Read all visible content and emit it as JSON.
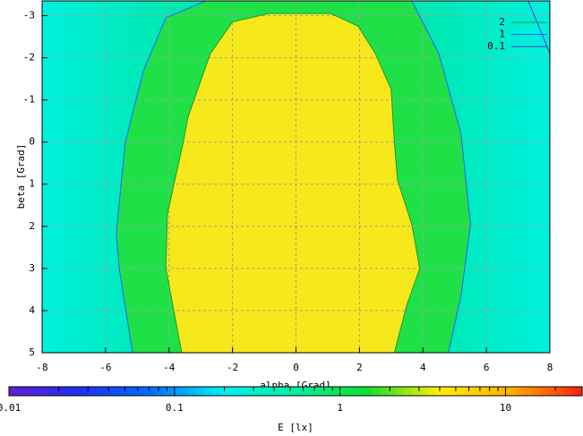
{
  "chart_data": {
    "type": "contour-map",
    "xlabel": "alpha [Grad]",
    "ylabel": "beta [Grad]",
    "xlim": [
      -8,
      8
    ],
    "xticks": [
      -8,
      -6,
      -4,
      -2,
      0,
      2,
      4,
      6,
      8
    ],
    "ylim": [
      5,
      -3.35
    ],
    "yticks": [
      -3,
      -2,
      -1,
      0,
      1,
      2,
      3,
      4,
      5
    ],
    "grid": true,
    "legend": "top-right",
    "background_colors": [
      "#00f0e0",
      "#00e8b0",
      "#00e8a8",
      "#00e8b0",
      "#00f0e0"
    ],
    "series": [
      {
        "name": "2",
        "color": "#1a9a2a",
        "fill": "#f6e81a",
        "x": [
          -3.6,
          -4.1,
          -4.05,
          -3.55,
          -3.4,
          -2.7,
          -2.0,
          -0.86,
          1.1,
          1.96,
          2.5,
          3.0,
          3.1,
          3.2,
          3.65,
          3.9,
          3.5,
          3.1
        ],
        "y": [
          5,
          3,
          1.7,
          0,
          -0.6,
          -2.1,
          -2.85,
          -3.05,
          -3.05,
          -2.75,
          -2.1,
          -1.25,
          0,
          0.9,
          1.95,
          3,
          3.85,
          5
        ]
      },
      {
        "name": "1",
        "color": "#2a60ff",
        "fill": "#20e048",
        "x": [
          -5.15,
          -5.57,
          -5.66,
          -5.38,
          -4.8,
          -4.1,
          -2.84,
          3.65,
          4.5,
          5.2,
          5.5,
          5.2,
          4.8
        ],
        "y": [
          5,
          3,
          2.15,
          0,
          -1.7,
          -2.95,
          -3.35,
          -3.35,
          -2.1,
          -0.2,
          1.95,
          3.65,
          5
        ]
      },
      {
        "name": "0.1",
        "color": "#5a30d0",
        "x": [
          7.32,
          8
        ],
        "y": [
          -3.35,
          -2.1
        ]
      }
    ],
    "colorbar": {
      "label": "E [lx]",
      "log": true,
      "clim": [
        0.01,
        29
      ],
      "ticks": [
        0.01,
        0.1,
        1,
        10
      ],
      "minor_ticks": [
        0.02,
        0.03,
        0.04,
        0.05,
        0.06,
        0.07,
        0.08,
        0.09,
        0.2,
        0.3,
        0.4,
        0.5,
        0.6,
        0.7,
        0.8,
        0.9,
        2,
        3,
        4,
        5,
        6,
        7,
        8,
        9,
        20
      ],
      "colors": [
        "#6020d0",
        "#2030f0",
        "#0070ff",
        "#00f0f0",
        "#00f0a0",
        "#10e030",
        "#ffee00",
        "#ffb000",
        "#ff2010"
      ]
    }
  }
}
